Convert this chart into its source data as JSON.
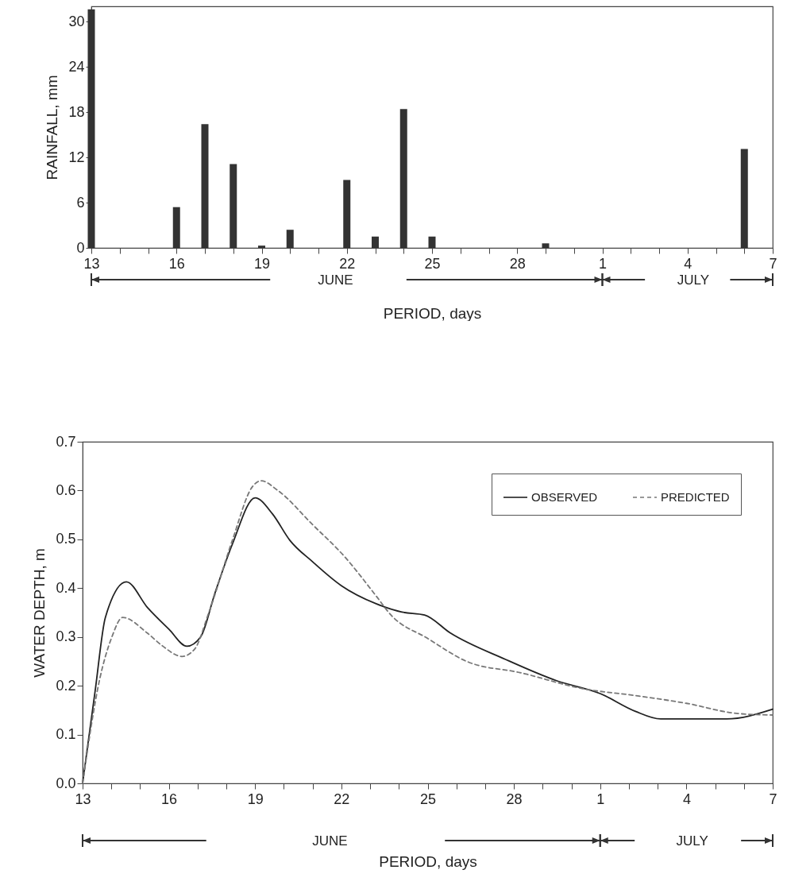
{
  "chart_data": [
    {
      "type": "bar",
      "ylabel": "RAINFALL, mm",
      "xlabel": "PERIOD, days",
      "annotations": [
        "JUNE",
        "JULY"
      ],
      "color": "#333333",
      "x": [
        "--06-13",
        "--06-16",
        "--06-17",
        "--06-18",
        "--06-19",
        "--06-20",
        "--06-22",
        "--06-23",
        "--06-24",
        "--06-25",
        "--06-29",
        "--07-06"
      ],
      "values": [
        31.6,
        5.4,
        16.4,
        11.1,
        0.3,
        2.4,
        9.0,
        1.5,
        18.4,
        1.5,
        0.6,
        13.1
      ],
      "xlim": [
        "--06-13",
        "--07-07"
      ],
      "xticks": [
        {
          "value": "--06-13",
          "label": "13"
        },
        {
          "value": "--06-14",
          "label": null
        },
        {
          "value": "--06-15",
          "label": null
        },
        {
          "value": "--06-16",
          "label": "16"
        },
        {
          "value": "--06-17",
          "label": null
        },
        {
          "value": "--06-18",
          "label": null
        },
        {
          "value": "--06-19",
          "label": "19"
        },
        {
          "value": "--06-20",
          "label": null
        },
        {
          "value": "--06-21",
          "label": null
        },
        {
          "value": "--06-22",
          "label": "22"
        },
        {
          "value": "--06-23",
          "label": null
        },
        {
          "value": "--06-24",
          "label": null
        },
        {
          "value": "--06-25",
          "label": "25"
        },
        {
          "value": "--06-26",
          "label": null
        },
        {
          "value": "--06-27",
          "label": null
        },
        {
          "value": "--06-28",
          "label": "28"
        },
        {
          "value": "--06-29",
          "label": null
        },
        {
          "value": "--06-30",
          "label": null
        },
        {
          "value": "--07-01",
          "label": "1"
        },
        {
          "value": "--07-02",
          "label": null
        },
        {
          "value": "--07-03",
          "label": null
        },
        {
          "value": "--07-04",
          "label": "4"
        },
        {
          "value": "--07-05",
          "label": null
        },
        {
          "value": "--07-06",
          "label": null
        },
        {
          "value": "--07-07",
          "label": "7"
        }
      ],
      "ylim": [
        0,
        32
      ],
      "yticks": [
        0,
        6,
        12,
        18,
        24,
        30
      ]
    },
    {
      "type": "line",
      "ylabel": "WATER DEPTH, m",
      "xlabel": "PERIOD, days",
      "annotations": [
        "JUNE",
        "JULY"
      ],
      "legend": "top right",
      "series": [
        {
          "name": "OBSERVED",
          "color": "#222222",
          "line_style": "solid",
          "x": [
            "--06-13T00:00",
            "--06-13T10:30",
            "--06-13T19:00",
            "--06-14T12:30",
            "--06-15T06:15",
            "--06-16T00:00",
            "--06-16T15:00",
            "--06-17T02:30",
            "--06-17T14:30",
            "--06-18T05:00",
            "--06-19T00:00",
            "--06-19T14:30",
            "--06-20T05:00",
            "--06-21T00:00",
            "--06-22T00:00",
            "--06-23T05:00",
            "--06-24T02:30",
            "--06-24T21:30",
            "--06-25T19:00",
            "--06-27T17:00",
            "--06-29T12:00",
            "--07-01T00:00",
            "--07-02T05:00",
            "--07-03T02:30",
            "--07-05T09:30",
            "--07-07T00:00"
          ],
          "values": [
            0,
            0.19,
            0.34,
            0.413,
            0.36,
            0.316,
            0.281,
            0.3,
            0.39,
            0.49,
            0.585,
            0.552,
            0.498,
            0.454,
            0.405,
            0.368,
            0.351,
            0.345,
            0.308,
            0.254,
            0.21,
            0.184,
            0.148,
            0.132,
            0.132,
            0.152
          ]
        },
        {
          "name": "PREDICTED",
          "color": "#777777",
          "line_style": "dashed",
          "x": [
            "--06-13T00:00",
            "--06-13T14:30",
            "--06-14T00:00",
            "--06-14T09:30",
            "--06-15T06:00",
            "--06-15T19:00",
            "--06-16T11:00",
            "--06-16T21:30",
            "--06-17T09:30",
            "--06-18T05:00",
            "--06-18T21:30",
            "--06-19T05:00",
            "--06-19T19:00",
            "--06-21T00:00",
            "--06-22T02:30",
            "--06-23T05:00",
            "--06-23T17:00",
            "--06-25T00:00",
            "--06-26T09:30",
            "--06-28T05:00",
            "--06-30T09:30",
            "--07-02T05:00",
            "--07-04T00:00",
            "--07-05T19:00",
            "--07-07T00:00"
          ],
          "values": [
            0,
            0.216,
            0.297,
            0.34,
            0.308,
            0.281,
            0.26,
            0.275,
            0.351,
            0.498,
            0.607,
            0.62,
            0.6,
            0.53,
            0.465,
            0.384,
            0.346,
            0.297,
            0.249,
            0.227,
            0.194,
            0.18,
            0.164,
            0.143,
            0.14
          ]
        }
      ],
      "xlim": [
        "--06-13",
        "--07-07"
      ],
      "xticks": [
        {
          "value": "--06-13",
          "label": "13"
        },
        {
          "value": "--06-14",
          "label": null
        },
        {
          "value": "--06-15",
          "label": null
        },
        {
          "value": "--06-16",
          "label": "16"
        },
        {
          "value": "--06-17",
          "label": null
        },
        {
          "value": "--06-18",
          "label": null
        },
        {
          "value": "--06-19",
          "label": "19"
        },
        {
          "value": "--06-20",
          "label": null
        },
        {
          "value": "--06-21",
          "label": null
        },
        {
          "value": "--06-22",
          "label": "22"
        },
        {
          "value": "--06-23",
          "label": null
        },
        {
          "value": "--06-24",
          "label": null
        },
        {
          "value": "--06-25",
          "label": "25"
        },
        {
          "value": "--06-26",
          "label": null
        },
        {
          "value": "--06-27",
          "label": null
        },
        {
          "value": "--06-28",
          "label": "28"
        },
        {
          "value": "--06-29",
          "label": null
        },
        {
          "value": "--06-30",
          "label": null
        },
        {
          "value": "--07-01",
          "label": "1"
        },
        {
          "value": "--07-02",
          "label": null
        },
        {
          "value": "--07-03",
          "label": null
        },
        {
          "value": "--07-04",
          "label": "4"
        },
        {
          "value": "--07-05",
          "label": null
        },
        {
          "value": "--07-06",
          "label": null
        },
        {
          "value": "--07-07",
          "label": "7"
        }
      ],
      "ylim": [
        0,
        0.7
      ],
      "yticks": [
        {
          "value": 0,
          "label": "0.0"
        },
        0.1,
        0.2,
        0.3,
        0.4,
        0.5,
        0.6,
        0.7
      ]
    }
  ]
}
